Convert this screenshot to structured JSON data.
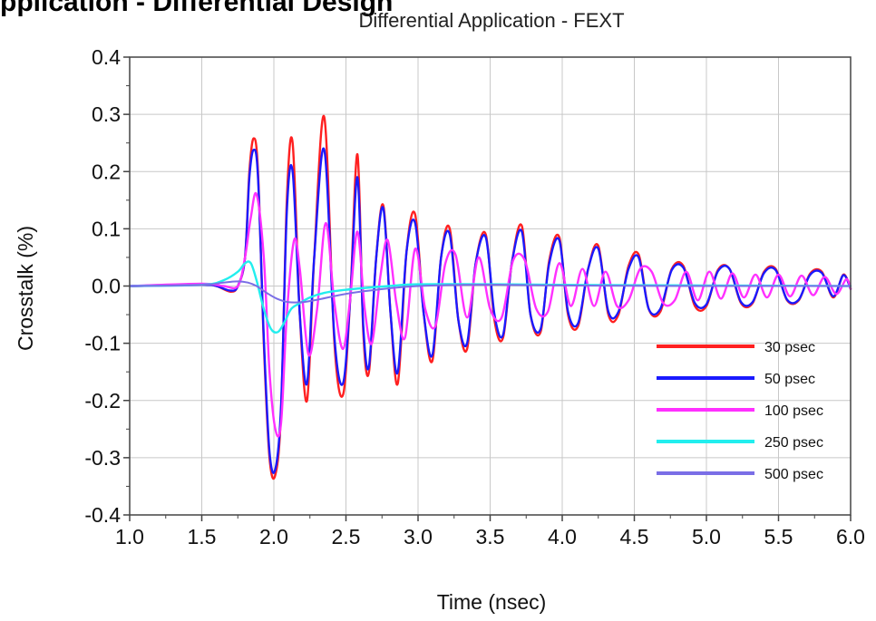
{
  "top_label": "pplication - Differential Design",
  "chart_data": {
    "type": "line",
    "title": "Differential Application - FEXT",
    "xlabel": "Time (nsec)",
    "ylabel": "Crosstalk (%)",
    "xlim": [
      1.0,
      6.0
    ],
    "ylim": [
      -0.4,
      0.4
    ],
    "xticks": [
      "1.0",
      "1.5",
      "2.0",
      "2.5",
      "3.0",
      "3.5",
      "4.0",
      "4.5",
      "5.0",
      "5.5",
      "6.0"
    ],
    "yticks": [
      "0.4",
      "0.3",
      "0.2",
      "0.1",
      "0.0",
      "-0.1",
      "-0.2",
      "-0.3",
      "-0.4"
    ],
    "grid": true,
    "legend_position": "bottom-right",
    "series": [
      {
        "name": "30 psec",
        "color": "#ff2020",
        "width": 2.4,
        "x": [
          1.0,
          1.5,
          1.6,
          1.7,
          1.75,
          1.8,
          1.83,
          1.86,
          1.89,
          1.93,
          1.97,
          2.01,
          2.05,
          2.09,
          2.13,
          2.18,
          2.23,
          2.28,
          2.35,
          2.42,
          2.48,
          2.53,
          2.58,
          2.62,
          2.66,
          2.71,
          2.76,
          2.81,
          2.86,
          2.92,
          2.98,
          3.04,
          3.1,
          3.16,
          3.22,
          3.28,
          3.34,
          3.4,
          3.47,
          3.53,
          3.59,
          3.65,
          3.72,
          3.78,
          3.85,
          3.91,
          3.98,
          4.04,
          4.11,
          4.18,
          4.25,
          4.32,
          4.39,
          4.46,
          4.53,
          4.6,
          4.68,
          4.76,
          4.84,
          4.92,
          5.0,
          5.08,
          5.16,
          5.24,
          5.32,
          5.4,
          5.48,
          5.56,
          5.64,
          5.72,
          5.8,
          5.88,
          5.95,
          6.0
        ],
        "y": [
          0.0,
          0.002,
          0.0,
          -0.01,
          0.0,
          0.05,
          0.2,
          0.258,
          0.2,
          -0.1,
          -0.3,
          -0.33,
          -0.22,
          0.15,
          0.25,
          -0.05,
          -0.2,
          0.05,
          0.295,
          -0.1,
          -0.19,
          -0.02,
          0.23,
          -0.08,
          -0.15,
          0.05,
          0.14,
          -0.05,
          -0.17,
          0.06,
          0.125,
          -0.05,
          -0.13,
          0.05,
          0.1,
          -0.06,
          -0.11,
          0.04,
          0.09,
          -0.06,
          -0.09,
          0.04,
          0.105,
          -0.05,
          -0.08,
          0.045,
          0.085,
          -0.05,
          -0.07,
          0.03,
          0.07,
          -0.05,
          -0.05,
          0.035,
          0.055,
          -0.04,
          -0.045,
          0.03,
          0.035,
          -0.035,
          -0.035,
          0.028,
          0.03,
          -0.03,
          -0.03,
          0.025,
          0.03,
          -0.025,
          -0.025,
          0.022,
          0.025,
          -0.02,
          0.02,
          -0.005
        ]
      },
      {
        "name": "50 psec",
        "color": "#1a1aff",
        "width": 2.4,
        "x": [
          1.0,
          1.5,
          1.6,
          1.7,
          1.75,
          1.8,
          1.83,
          1.86,
          1.89,
          1.93,
          1.97,
          2.01,
          2.05,
          2.09,
          2.13,
          2.18,
          2.23,
          2.28,
          2.35,
          2.42,
          2.48,
          2.53,
          2.58,
          2.62,
          2.66,
          2.71,
          2.76,
          2.81,
          2.86,
          2.92,
          2.98,
          3.04,
          3.1,
          3.16,
          3.22,
          3.28,
          3.34,
          3.4,
          3.47,
          3.53,
          3.59,
          3.65,
          3.72,
          3.78,
          3.85,
          3.91,
          3.98,
          4.04,
          4.11,
          4.18,
          4.25,
          4.32,
          4.39,
          4.46,
          4.53,
          4.6,
          4.68,
          4.76,
          4.84,
          4.92,
          5.0,
          5.08,
          5.16,
          5.24,
          5.32,
          5.4,
          5.48,
          5.56,
          5.64,
          5.72,
          5.8,
          5.88,
          5.95,
          6.0
        ],
        "y": [
          0.0,
          0.002,
          0.0,
          -0.008,
          0.0,
          0.05,
          0.19,
          0.238,
          0.19,
          -0.09,
          -0.29,
          -0.32,
          -0.21,
          0.13,
          0.2,
          -0.05,
          -0.17,
          0.05,
          0.238,
          -0.09,
          -0.17,
          -0.02,
          0.19,
          -0.07,
          -0.14,
          0.05,
          0.135,
          -0.05,
          -0.15,
          0.06,
          0.11,
          -0.05,
          -0.12,
          0.05,
          0.09,
          -0.06,
          -0.1,
          0.04,
          0.085,
          -0.05,
          -0.085,
          0.04,
          0.095,
          -0.05,
          -0.075,
          0.04,
          0.08,
          -0.045,
          -0.065,
          0.03,
          0.065,
          -0.045,
          -0.045,
          0.03,
          0.05,
          -0.04,
          -0.04,
          0.028,
          0.032,
          -0.03,
          -0.032,
          0.026,
          0.03,
          -0.028,
          -0.028,
          0.023,
          0.028,
          -0.024,
          -0.024,
          0.02,
          0.023,
          -0.018,
          0.019,
          -0.005
        ]
      },
      {
        "name": "100 psec",
        "color": "#ff30ff",
        "width": 2.4,
        "x": [
          1.0,
          1.5,
          1.65,
          1.75,
          1.8,
          1.84,
          1.88,
          1.93,
          1.97,
          2.01,
          2.05,
          2.09,
          2.14,
          2.18,
          2.24,
          2.3,
          2.36,
          2.42,
          2.48,
          2.53,
          2.58,
          2.63,
          2.68,
          2.74,
          2.79,
          2.85,
          2.91,
          2.98,
          3.05,
          3.12,
          3.19,
          3.26,
          3.34,
          3.42,
          3.5,
          3.58,
          3.66,
          3.74,
          3.82,
          3.9,
          3.98,
          4.06,
          4.14,
          4.22,
          4.3,
          4.38,
          4.46,
          4.54,
          4.62,
          4.7,
          4.78,
          4.86,
          4.94,
          5.02,
          5.1,
          5.18,
          5.26,
          5.34,
          5.42,
          5.5,
          5.58,
          5.66,
          5.74,
          5.82,
          5.9,
          5.97,
          6.0
        ],
        "y": [
          0.0,
          0.004,
          0.0,
          0.0,
          0.05,
          0.12,
          0.16,
          0.05,
          -0.15,
          -0.25,
          -0.24,
          -0.05,
          0.08,
          0.03,
          -0.12,
          -0.04,
          0.11,
          -0.03,
          -0.11,
          -0.02,
          0.095,
          -0.04,
          -0.1,
          0.02,
          0.08,
          -0.03,
          -0.09,
          0.065,
          -0.04,
          -0.07,
          0.04,
          0.055,
          -0.055,
          0.05,
          -0.04,
          -0.055,
          0.045,
          0.045,
          -0.04,
          -0.045,
          0.04,
          -0.035,
          0.03,
          -0.035,
          0.025,
          -0.035,
          -0.025,
          0.03,
          0.025,
          -0.03,
          -0.025,
          0.025,
          -0.025,
          0.025,
          -0.022,
          0.022,
          -0.02,
          0.02,
          -0.02,
          0.02,
          -0.018,
          0.018,
          -0.016,
          0.016,
          -0.014,
          0.012,
          -0.005
        ]
      },
      {
        "name": "250 psec",
        "color": "#22eeee",
        "width": 2.4,
        "x": [
          1.0,
          1.5,
          1.65,
          1.75,
          1.8,
          1.84,
          1.88,
          1.93,
          1.98,
          2.03,
          2.08,
          2.12,
          2.18,
          2.25,
          2.35,
          2.45,
          2.6,
          2.8,
          3.0,
          3.5,
          4.0,
          5.0,
          6.0
        ],
        "y": [
          0.0,
          0.002,
          0.01,
          0.025,
          0.04,
          0.04,
          0.01,
          -0.04,
          -0.075,
          -0.08,
          -0.06,
          -0.04,
          -0.03,
          -0.02,
          -0.012,
          -0.008,
          -0.004,
          0.0,
          0.003,
          0.003,
          0.002,
          0.001,
          0.0
        ]
      },
      {
        "name": "500 psec",
        "color": "#7a6ee6",
        "width": 2.0,
        "x": [
          1.0,
          1.5,
          1.65,
          1.75,
          1.82,
          1.88,
          1.95,
          2.02,
          2.1,
          2.2,
          2.3,
          2.45,
          2.6,
          2.8,
          3.0,
          3.3,
          3.6,
          4.0,
          5.0,
          6.0
        ],
        "y": [
          0.0,
          0.002,
          0.006,
          0.008,
          0.006,
          0.0,
          -0.012,
          -0.022,
          -0.028,
          -0.028,
          -0.024,
          -0.016,
          -0.01,
          -0.004,
          0.0,
          0.002,
          0.002,
          0.001,
          0.0,
          0.0
        ]
      }
    ]
  }
}
